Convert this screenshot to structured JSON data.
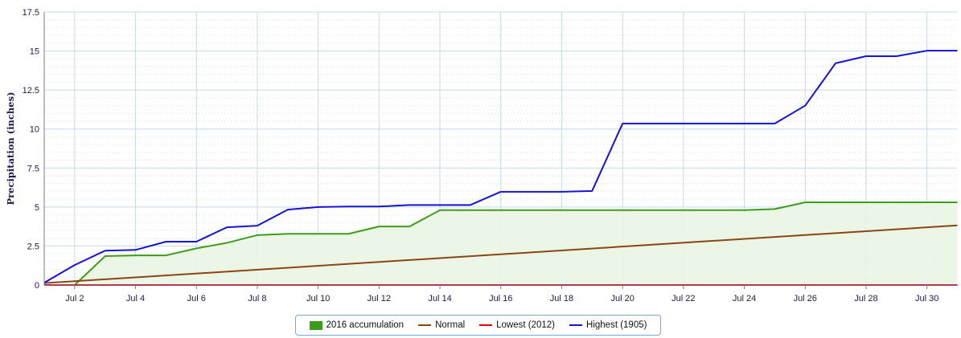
{
  "chart_data": {
    "type": "line",
    "ylabel": "Precipitation (inches)",
    "ylim": [
      0,
      17.5
    ],
    "y_ticks": [
      "0",
      "2.5",
      "5",
      "7.5",
      "10",
      "12.5",
      "15",
      "17.5"
    ],
    "y_tick_values": [
      0,
      2.5,
      5,
      7.5,
      10,
      12.5,
      15,
      17.5
    ],
    "xlim": [
      1,
      31
    ],
    "x_ticks": [
      "Jul 2",
      "Jul 4",
      "Jul 6",
      "Jul 8",
      "Jul 10",
      "Jul 12",
      "Jul 14",
      "Jul 16",
      "Jul 18",
      "Jul 20",
      "Jul 22",
      "Jul 24",
      "Jul 26",
      "Jul 28",
      "Jul 30"
    ],
    "x_tick_values": [
      2,
      4,
      6,
      8,
      10,
      12,
      14,
      16,
      18,
      20,
      22,
      24,
      26,
      28,
      30
    ],
    "grid": true,
    "legend_position": "bottom-center",
    "series": [
      {
        "name": "2016 accumulation",
        "style": "area",
        "color": "#3c9c1c",
        "fill": "#eaf5e4",
        "x": [
          2,
          3,
          4,
          5,
          6,
          7,
          8,
          9,
          10,
          11,
          12,
          13,
          14,
          15,
          16,
          17,
          18,
          19,
          20,
          21,
          22,
          23,
          24,
          25,
          26,
          27,
          28,
          29,
          30,
          31
        ],
        "values": [
          0.0,
          1.85,
          1.9,
          1.9,
          2.35,
          2.7,
          3.2,
          3.28,
          3.28,
          3.28,
          3.75,
          3.75,
          4.8,
          4.8,
          4.8,
          4.8,
          4.8,
          4.8,
          4.8,
          4.8,
          4.8,
          4.8,
          4.8,
          4.87,
          5.3,
          5.3,
          5.3,
          5.3,
          5.3,
          5.3
        ]
      },
      {
        "name": "Normal",
        "style": "line",
        "color": "#8b4513",
        "x": [
          1,
          31
        ],
        "values": [
          0.12,
          3.82
        ]
      },
      {
        "name": "Lowest (2012)",
        "style": "line",
        "color": "#e00000",
        "x": [
          1,
          31
        ],
        "values": [
          0.0,
          0.0
        ]
      },
      {
        "name": "Highest (1905)",
        "style": "line",
        "color": "#1414d2",
        "x": [
          1,
          2,
          3,
          4,
          5,
          6,
          7,
          8,
          9,
          10,
          11,
          12,
          13,
          14,
          15,
          16,
          17,
          18,
          19,
          20,
          21,
          22,
          23,
          24,
          25,
          26,
          27,
          28,
          29,
          30,
          31
        ],
        "values": [
          0.15,
          1.28,
          2.2,
          2.25,
          2.78,
          2.78,
          3.7,
          3.8,
          4.83,
          5.0,
          5.03,
          5.03,
          5.13,
          5.13,
          5.13,
          5.98,
          5.98,
          5.98,
          6.03,
          10.35,
          10.35,
          10.35,
          10.35,
          10.35,
          10.35,
          11.5,
          14.22,
          14.67,
          14.67,
          15.02,
          15.02
        ]
      }
    ]
  }
}
